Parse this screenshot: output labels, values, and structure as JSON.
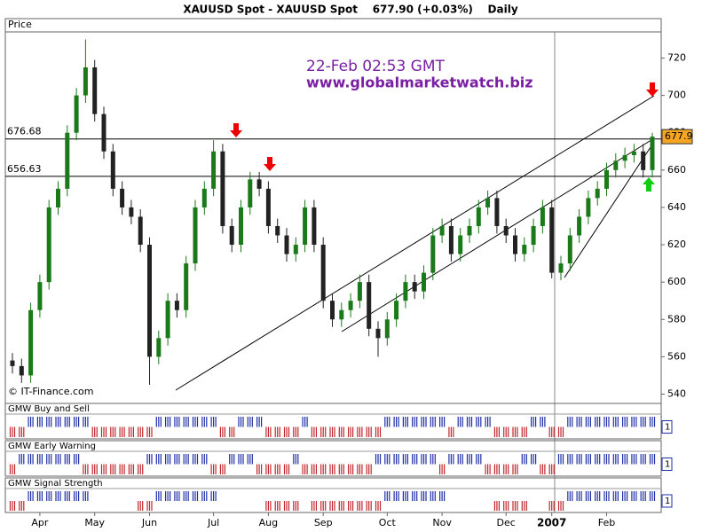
{
  "chart_data": {
    "type": "candlestick",
    "title": "XAUUSD Spot - XAUUSD Spot    677.90 (+0.03%)    Daily",
    "y_label": "Price",
    "annotations": [
      "22-Feb 02:53 GMT",
      "www.globalmarketwatch.biz"
    ],
    "credit": "© IT-Finance.com",
    "categories": [
      null,
      null,
      null,
      "Apr",
      null,
      null,
      null,
      null,
      null,
      "May",
      null,
      null,
      null,
      null,
      null,
      "Jun",
      null,
      null,
      null,
      null,
      null,
      null,
      "Jul",
      null,
      null,
      null,
      null,
      null,
      "Aug",
      null,
      null,
      null,
      null,
      null,
      "Sep",
      null,
      null,
      null,
      null,
      null,
      null,
      "Oct",
      null,
      null,
      null,
      null,
      null,
      "Nov",
      null,
      null,
      null,
      null,
      null,
      null,
      "Dec",
      null,
      null,
      null,
      null,
      "2007",
      null,
      null,
      null,
      null,
      null,
      "Feb",
      null,
      null,
      null,
      null,
      null
    ],
    "open": [
      558,
      555,
      550,
      585,
      600,
      640,
      650,
      680,
      700,
      715,
      690,
      670,
      650,
      640,
      635,
      620,
      560,
      570,
      590,
      585,
      610,
      640,
      650,
      670,
      630,
      620,
      640,
      655,
      650,
      630,
      625,
      615,
      620,
      640,
      620,
      590,
      580,
      585,
      590,
      600,
      575,
      570,
      580,
      590,
      600,
      595,
      605,
      625,
      630,
      615,
      625,
      630,
      640,
      645,
      630,
      625,
      615,
      620,
      630,
      640,
      605,
      610,
      625,
      635,
      645,
      650,
      660,
      665,
      668,
      670,
      660
    ],
    "high": [
      562,
      559,
      589,
      604,
      644,
      654,
      684,
      704,
      730,
      719,
      694,
      674,
      654,
      644,
      639,
      624,
      574,
      594,
      594,
      614,
      644,
      654,
      676,
      674,
      634,
      644,
      659,
      659,
      654,
      634,
      629,
      624,
      644,
      644,
      624,
      594,
      589,
      594,
      604,
      604,
      579,
      584,
      594,
      604,
      604,
      609,
      629,
      634,
      634,
      629,
      634,
      644,
      649,
      649,
      634,
      629,
      624,
      634,
      644,
      644,
      614,
      629,
      639,
      649,
      654,
      664,
      669,
      672,
      674,
      674,
      680
    ],
    "low": [
      551,
      546,
      546,
      581,
      596,
      636,
      646,
      676,
      696,
      686,
      666,
      646,
      636,
      631,
      616,
      545,
      556,
      566,
      581,
      581,
      606,
      636,
      646,
      626,
      616,
      616,
      636,
      646,
      626,
      621,
      611,
      611,
      616,
      616,
      586,
      576,
      576,
      581,
      586,
      571,
      560,
      566,
      576,
      586,
      591,
      591,
      601,
      621,
      611,
      611,
      621,
      626,
      636,
      626,
      621,
      611,
      611,
      616,
      626,
      602,
      601,
      606,
      621,
      631,
      641,
      646,
      656,
      661,
      664,
      656,
      656
    ],
    "close": [
      555,
      550,
      585,
      600,
      640,
      650,
      680,
      700,
      715,
      690,
      670,
      650,
      640,
      635,
      620,
      560,
      570,
      590,
      585,
      610,
      640,
      650,
      670,
      630,
      620,
      640,
      655,
      650,
      630,
      625,
      615,
      620,
      640,
      620,
      590,
      580,
      585,
      590,
      600,
      575,
      570,
      580,
      590,
      600,
      595,
      605,
      625,
      630,
      615,
      625,
      630,
      640,
      645,
      630,
      625,
      615,
      620,
      630,
      640,
      605,
      610,
      625,
      635,
      645,
      650,
      660,
      665,
      668,
      670,
      660,
      677.9
    ],
    "up_color": "#1a7a1a",
    "down_color": "#222222",
    "ylim": [
      535,
      734
    ],
    "yticks": [
      540,
      560,
      580,
      600,
      620,
      640,
      660,
      680,
      700,
      720
    ],
    "hlines": [
      676.68,
      656.63
    ],
    "last_price_color": "#f5a623",
    "indicators": [
      {
        "name": "GMW Buy and Sell",
        "ylim": [
          -1,
          1
        ],
        "yticks": [
          1
        ],
        "up_color": "#1f2fa8",
        "down_color": "#c0262c",
        "signals": [
          -1,
          -1,
          1,
          1,
          1,
          1,
          1,
          1,
          1,
          -1,
          -1,
          -1,
          -1,
          -1,
          -1,
          -1,
          1,
          1,
          1,
          1,
          1,
          1,
          1,
          -1,
          -1,
          1,
          1,
          1,
          -1,
          -1,
          -1,
          -1,
          1,
          -1,
          -1,
          -1,
          -1,
          -1,
          -1,
          -1,
          -1,
          1,
          1,
          1,
          1,
          1,
          1,
          1,
          -1,
          1,
          1,
          1,
          1,
          -1,
          -1,
          -1,
          -1,
          1,
          1,
          -1,
          -1,
          1,
          1,
          1,
          1,
          1,
          1,
          1,
          1,
          1,
          1
        ]
      },
      {
        "name": "GMW Early Warning",
        "ylim": [
          -1,
          1
        ],
        "yticks": [
          1
        ],
        "up_color": "#1f2fa8",
        "down_color": "#c0262c",
        "signals": [
          -1,
          1,
          1,
          1,
          1,
          1,
          1,
          1,
          -1,
          -1,
          -1,
          -1,
          -1,
          -1,
          -1,
          1,
          1,
          1,
          1,
          1,
          1,
          1,
          -1,
          -1,
          1,
          1,
          1,
          -1,
          -1,
          -1,
          -1,
          1,
          -1,
          -1,
          -1,
          -1,
          -1,
          -1,
          -1,
          -1,
          1,
          1,
          1,
          1,
          1,
          1,
          1,
          -1,
          1,
          1,
          1,
          1,
          -1,
          -1,
          -1,
          -1,
          1,
          1,
          -1,
          -1,
          1,
          1,
          1,
          1,
          1,
          1,
          1,
          1,
          1,
          1,
          1
        ]
      },
      {
        "name": "GMW Signal Strength",
        "ylim": [
          -1,
          1
        ],
        "yticks": [
          1
        ],
        "up_color": "#1f2fa8",
        "down_color": "#c0262c",
        "signals": [
          -1,
          -1,
          1,
          1,
          1,
          1,
          1,
          1,
          1,
          0,
          0,
          0,
          0,
          0,
          -1,
          -1,
          1,
          1,
          1,
          1,
          1,
          1,
          1,
          0,
          0,
          0,
          0,
          0,
          -1,
          -1,
          -1,
          -1,
          0,
          -1,
          -1,
          -1,
          -1,
          -1,
          -1,
          -1,
          -1,
          1,
          1,
          1,
          1,
          1,
          1,
          1,
          0,
          0,
          0,
          0,
          0,
          -1,
          -1,
          -1,
          -1,
          0,
          0,
          -1,
          -1,
          1,
          1,
          1,
          1,
          1,
          1,
          1,
          1,
          1,
          1
        ]
      }
    ]
  }
}
